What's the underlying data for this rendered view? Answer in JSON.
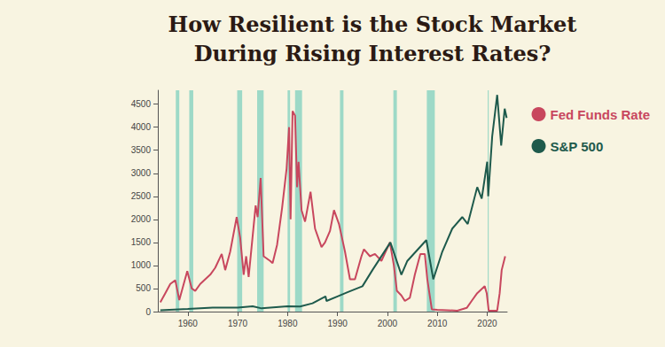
{
  "chart_data": {
    "type": "line",
    "title": "How Resilient is the Stock Market\nDuring Rising Interest Rates?",
    "series": [
      {
        "name": "Fed Funds Rate",
        "color": "#c8475e",
        "x": [
          1954.5,
          1955.5,
          1956.5,
          1957.5,
          1958.3,
          1959.9,
          1960.8,
          1961.5,
          1962.5,
          1963.5,
          1964.5,
          1965.5,
          1966.8,
          1967.5,
          1968.5,
          1969.8,
          1970.5,
          1971.2,
          1971.7,
          1972.2,
          1973.6,
          1974.0,
          1974.6,
          1975.2,
          1976.5,
          1977.0,
          1977.9,
          1978.9,
          1979.8,
          1980.3,
          1980.6,
          1981.0,
          1981.5,
          1981.9,
          1982.2,
          1982.8,
          1983.5,
          1984.6,
          1985.5,
          1986.8,
          1987.5,
          1988.5,
          1989.3,
          1990.3,
          1991.5,
          1992.5,
          1993.5,
          1994.8,
          1995.3,
          1996.5,
          1997.5,
          1998.8,
          2000.5,
          2001.3,
          2001.9,
          2002.8,
          2003.5,
          2004.5,
          2005.5,
          2006.6,
          2007.5,
          2008.0,
          2008.9,
          2010.0,
          2012.0,
          2014.0,
          2015.9,
          2017.0,
          2018.0,
          2019.5,
          2019.9,
          2020.3,
          2021.0,
          2022.0,
          2022.5,
          2022.9,
          2023.6
        ],
        "values": [
          200,
          400,
          600,
          680,
          250,
          880,
          500,
          450,
          600,
          700,
          800,
          950,
          1250,
          900,
          1300,
          2050,
          1600,
          800,
          1200,
          750,
          2300,
          2050,
          2900,
          1200,
          1100,
          1050,
          1450,
          2250,
          3100,
          4000,
          2000,
          4350,
          4250,
          2700,
          3250,
          2200,
          1950,
          2600,
          1800,
          1400,
          1500,
          1750,
          2200,
          1900,
          1300,
          700,
          700,
          1200,
          1350,
          1200,
          1250,
          1100,
          1500,
          1000,
          450,
          350,
          230,
          300,
          800,
          1250,
          1250,
          700,
          50,
          40,
          30,
          20,
          80,
          250,
          400,
          550,
          400,
          20,
          20,
          20,
          400,
          900,
          1200
        ]
      },
      {
        "name": "S&P 500",
        "color": "#1e5a4c",
        "x": [
          1954.5,
          1960.0,
          1965.0,
          1970.0,
          1973.0,
          1974.8,
          1980.0,
          1982.5,
          1985.0,
          1987.6,
          1987.8,
          1990.0,
          1992.0,
          1995.0,
          1997.0,
          1998.5,
          2000.6,
          2002.8,
          2004.0,
          2007.8,
          2009.2,
          2011.0,
          2013.0,
          2015.0,
          2016.1,
          2018.0,
          2018.9,
          2020.0,
          2020.2,
          2021.0,
          2022.0,
          2022.8,
          2023.5,
          2023.9
        ],
        "values": [
          30,
          58,
          85,
          85,
          115,
          70,
          115,
          110,
          180,
          330,
          230,
          330,
          420,
          550,
          900,
          1150,
          1500,
          800,
          1100,
          1550,
          700,
          1300,
          1800,
          2050,
          1900,
          2700,
          2450,
          3250,
          2500,
          3800,
          4700,
          3600,
          4400,
          4200
        ]
      }
    ],
    "xlim": [
      1954,
      2024
    ],
    "xticks": [
      1960,
      1970,
      1980,
      1990,
      2000,
      2010,
      2020
    ],
    "ylim": [
      0,
      4800
    ],
    "yticks": [
      0,
      500,
      1000,
      1500,
      2000,
      2500,
      3000,
      3500,
      4000,
      4500
    ],
    "grid": false,
    "legend": "upper right",
    "shaded_ranges": [
      [
        1957.6,
        1958.3
      ],
      [
        1960.3,
        1961.1
      ],
      [
        1969.9,
        1970.9
      ],
      [
        1973.9,
        1975.2
      ],
      [
        1980.0,
        1980.5
      ],
      [
        1981.5,
        1982.9
      ],
      [
        1990.5,
        1991.2
      ],
      [
        2001.2,
        2001.9
      ],
      [
        2007.9,
        2009.5
      ],
      [
        2020.1,
        2020.3
      ]
    ]
  }
}
